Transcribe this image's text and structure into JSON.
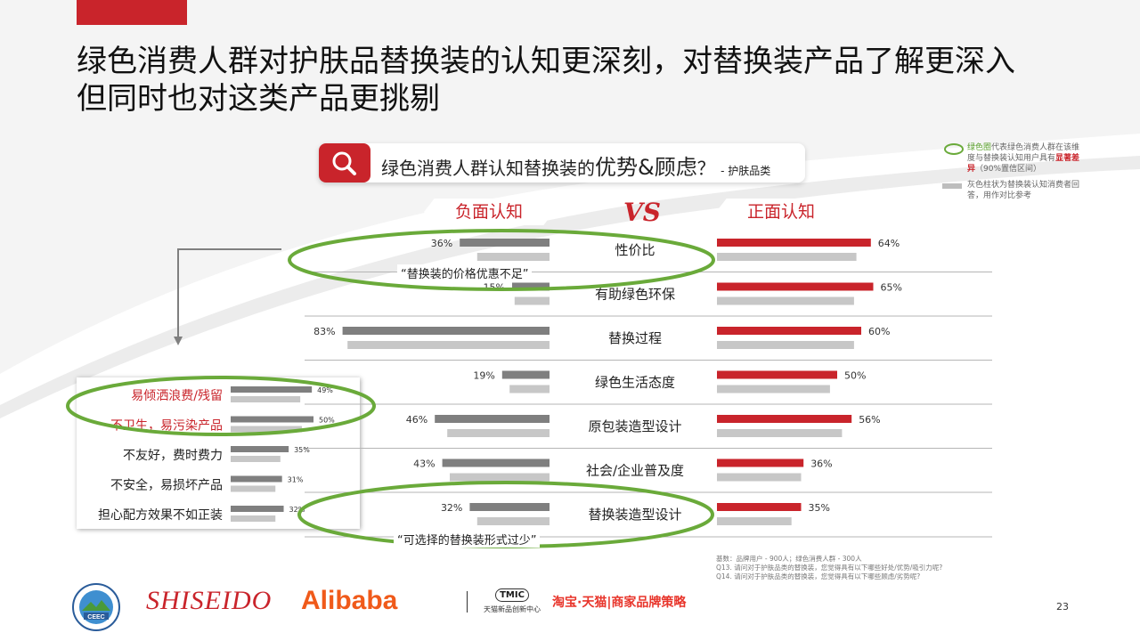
{
  "title": {
    "line1": "绿色消费人群对护肤品替换装的认知更深刻，对替换装产品了解更深入",
    "line2": "但同时也对这类产品更挑剔"
  },
  "question": {
    "prefix": "绿色消费人群认知替换装的",
    "emph": "优势&顾虑",
    "suffix": "？",
    "note": "- 护肤品类"
  },
  "legend": {
    "green_label": "绿色圈",
    "green_text_a": "代表绿色消费人群在该维度与替换装认知用户具有",
    "green_text_sig": "显著差异",
    "green_text_b": "（90%置信区间）",
    "grey_text": "灰色柱状为替换装认知消费者回答，用作对比参考"
  },
  "tags": {
    "negative": "负面认知",
    "positive": "正面认知",
    "vs": "VS"
  },
  "colors": {
    "red": "#c9242b",
    "dark": "#7f7f7f",
    "light": "#c7c7c7",
    "green": "#6aaa3a"
  },
  "chart_data": [
    {
      "type": "bar",
      "orientation": "horizontal-diverging",
      "categories": [
        "性价比",
        "有助绿色环保",
        "替换过程",
        "绿色生活态度",
        "原包装造型设计",
        "社会/企业普及度",
        "替换装造型设计"
      ],
      "negative": {
        "values": [
          36,
          15,
          83,
          19,
          46,
          43,
          32
        ],
        "labels": [
          "36%",
          "15%",
          "83%",
          "19%",
          "46%",
          "43%",
          "32%"
        ],
        "compare": [
          29,
          14,
          81,
          16,
          41,
          40,
          29
        ]
      },
      "positive": {
        "values": [
          64,
          65,
          60,
          50,
          56,
          36,
          35
        ],
        "labels": [
          "64%",
          "65%",
          "60%",
          "50%",
          "56%",
          "36%",
          "35%"
        ],
        "compare": [
          58,
          57,
          57,
          47,
          52,
          35,
          31
        ]
      },
      "quotes": [
        "“替换装的价格优惠不足”",
        "“可选择的替换装形式过少”"
      ],
      "xlim": [
        0,
        100
      ]
    },
    {
      "type": "bar",
      "orientation": "horizontal",
      "categories": [
        "易倾洒浪费/残留",
        "不卫生，易污染产品",
        "不友好，费时费力",
        "不安全，易损坏产品",
        "担心配方效果不如正装"
      ],
      "values": [
        49,
        50,
        35,
        31,
        32
      ],
      "labels": [
        "49%",
        "50%",
        "35%",
        "31%",
        "32%"
      ],
      "compare": [
        42,
        43,
        30,
        27,
        27
      ],
      "xlim": [
        0,
        100
      ]
    }
  ],
  "footnote": {
    "l1": "基数：品牌用户 - 900人；绿色消费人群 - 300人",
    "l2": "Q13. 请问对于护肤品类的替换装，您觉得具有以下哪些好处/优势/吸引力呢?",
    "l3": "Q14. 请问对于护肤品类的替换装，您觉得具有以下哪些顾虑/劣势呢?"
  },
  "page_number": "23",
  "logos": {
    "ceec": "CEEC",
    "shiseido": "SHISEIDO",
    "alibaba": "Alibaba",
    "tmic": "TMIC",
    "tmic_sub": "天猫新品创新中心",
    "taobao": "淘宝·天猫|商家品牌策略"
  }
}
